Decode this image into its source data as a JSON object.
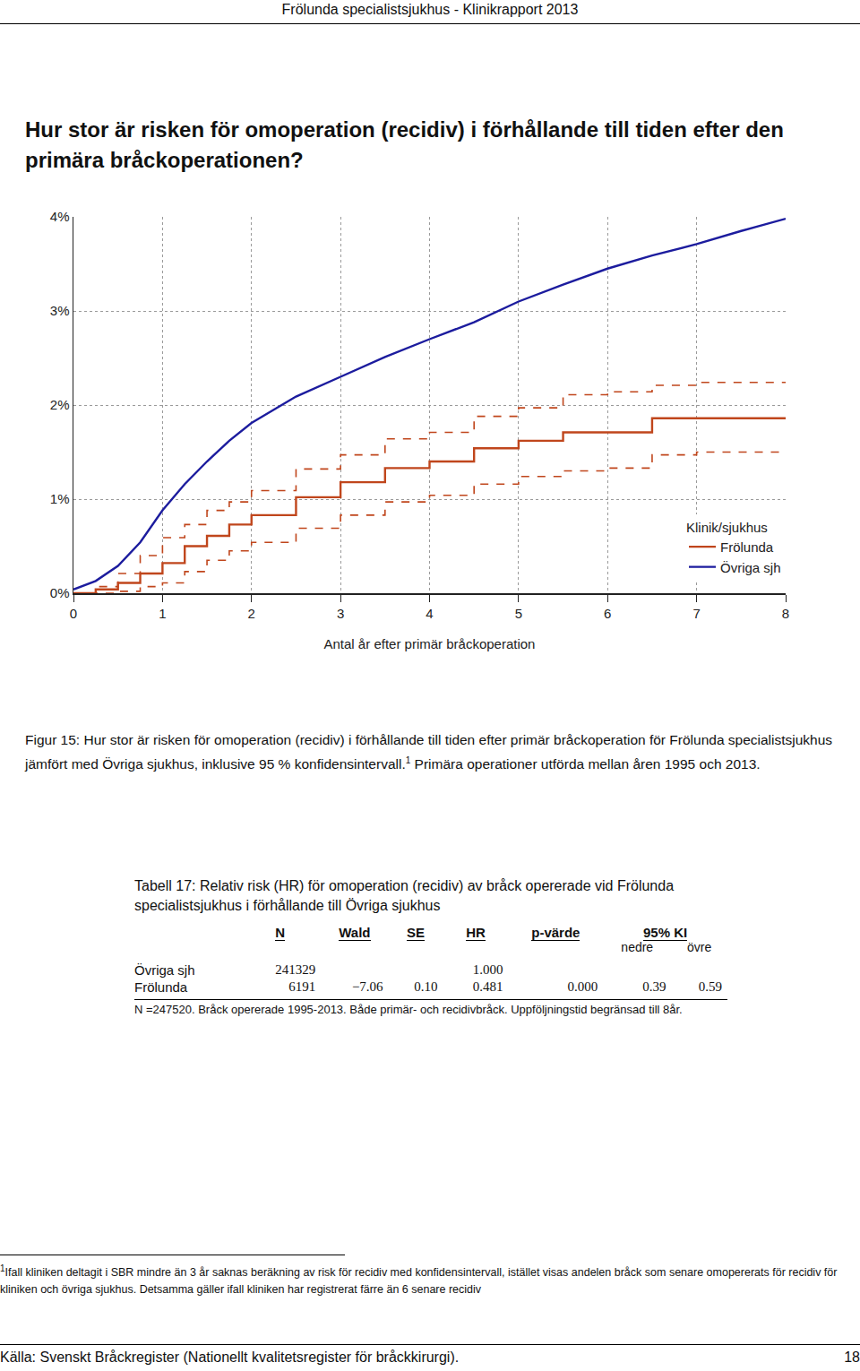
{
  "header": "Frölunda specialistsjukhus - Klinikrapport 2013",
  "heading": "Hur stor är risken för omoperation (recidiv) i förhållande till tiden efter den primära bråckoperationen?",
  "chart_data": {
    "type": "line",
    "xlabel": "Antal år efter primär bråckoperation",
    "legend_title": "Klinik/sjukhus",
    "legend": "bottom right",
    "grid": true,
    "xlim": [
      0,
      8
    ],
    "xticks": [
      0,
      1,
      2,
      3,
      4,
      5,
      6,
      7,
      8
    ],
    "ylim": [
      0,
      4
    ],
    "yticks": [
      {
        "value": 0,
        "label": "0%"
      },
      {
        "value": 1,
        "label": "1%"
      },
      {
        "value": 2,
        "label": "2%"
      },
      {
        "value": 3,
        "label": "3%"
      },
      {
        "value": 4,
        "label": "4%"
      }
    ],
    "x": [
      0,
      0.25,
      0.5,
      0.75,
      1,
      1.25,
      1.5,
      1.75,
      2,
      2.5,
      3,
      3.5,
      4,
      4.5,
      5,
      5.5,
      6,
      6.5,
      7,
      7.5,
      8
    ],
    "series": [
      {
        "name": "Frölunda",
        "color": "#c0461c",
        "line_style": "step",
        "values": [
          0,
          0.04,
          0.11,
          0.21,
          0.32,
          0.5,
          0.61,
          0.73,
          0.83,
          1.02,
          1.18,
          1.33,
          1.4,
          1.54,
          1.62,
          1.71,
          1.71,
          1.86,
          1.86,
          1.86,
          1.86
        ],
        "lower": [
          0,
          0,
          0.02,
          0.07,
          0.11,
          0.23,
          0.35,
          0.45,
          0.54,
          0.69,
          0.83,
          0.97,
          1.04,
          1.16,
          1.24,
          1.3,
          1.33,
          1.47,
          1.5,
          1.5,
          1.5
        ],
        "upper": [
          0,
          0.07,
          0.21,
          0.4,
          0.59,
          0.73,
          0.88,
          0.97,
          1.09,
          1.32,
          1.47,
          1.64,
          1.71,
          1.88,
          1.97,
          2.11,
          2.14,
          2.21,
          2.24,
          2.24,
          2.24
        ]
      },
      {
        "name": "Övriga sjh",
        "color": "#1c1c9e",
        "line_style": "solid",
        "values": [
          0.04,
          0.13,
          0.29,
          0.54,
          0.88,
          1.16,
          1.4,
          1.62,
          1.81,
          2.09,
          2.3,
          2.51,
          2.7,
          2.88,
          3.1,
          3.28,
          3.45,
          3.59,
          3.71,
          3.85,
          3.98
        ]
      }
    ]
  },
  "caption": {
    "text": "Figur 15: Hur stor är risken för omoperation (recidiv) i förhållande till tiden efter primär bråckoperation för Frölunda specialistsjukhus jämfört med Övriga sjukhus, inklusive 95 % konfidensintervall.",
    "footnote_mark": "1",
    "text_after": "Primära operationer utförda mellan åren 1995 och 2013."
  },
  "table": {
    "title": "Tabell 17: Relativ risk (HR) för omoperation (recidiv) av bråck opererade vid Frölunda specialistsjukhus i förhållande till Övriga sjukhus",
    "columns": [
      "N",
      "Wald",
      "SE",
      "HR",
      "p-värde"
    ],
    "group": {
      "label": "95% KI",
      "columns": [
        "nedre",
        "övre"
      ]
    },
    "rows": [
      {
        "label": "Övriga sjh",
        "cells": [
          "241329",
          null,
          null,
          "1.000",
          null,
          null,
          null
        ]
      },
      {
        "label": "Frölunda",
        "cells": [
          "6191",
          "−7.06",
          "0.10",
          "0.481",
          "0.000",
          "0.39",
          "0.59"
        ]
      }
    ],
    "note": "N =247520. Bråck opererade 1995-2013. Både primär- och recidivbråck. Uppföljningstid begränsad till 8år."
  },
  "footnote": {
    "mark": "1",
    "text": "Ifall kliniken deltagit i SBR mindre än 3 år saknas beräkning av risk för recidiv med konfidensintervall, istället visas andelen bråck som senare omopererats för recidiv för kliniken och övriga sjukhus. Detsamma gäller ifall kliniken har registrerat färre än 6 senare recidiv"
  },
  "footer": {
    "source": "Källa: Svenskt Bråckregister (Nationellt kvalitetsregister för bråckkirurgi).",
    "page": 18
  }
}
